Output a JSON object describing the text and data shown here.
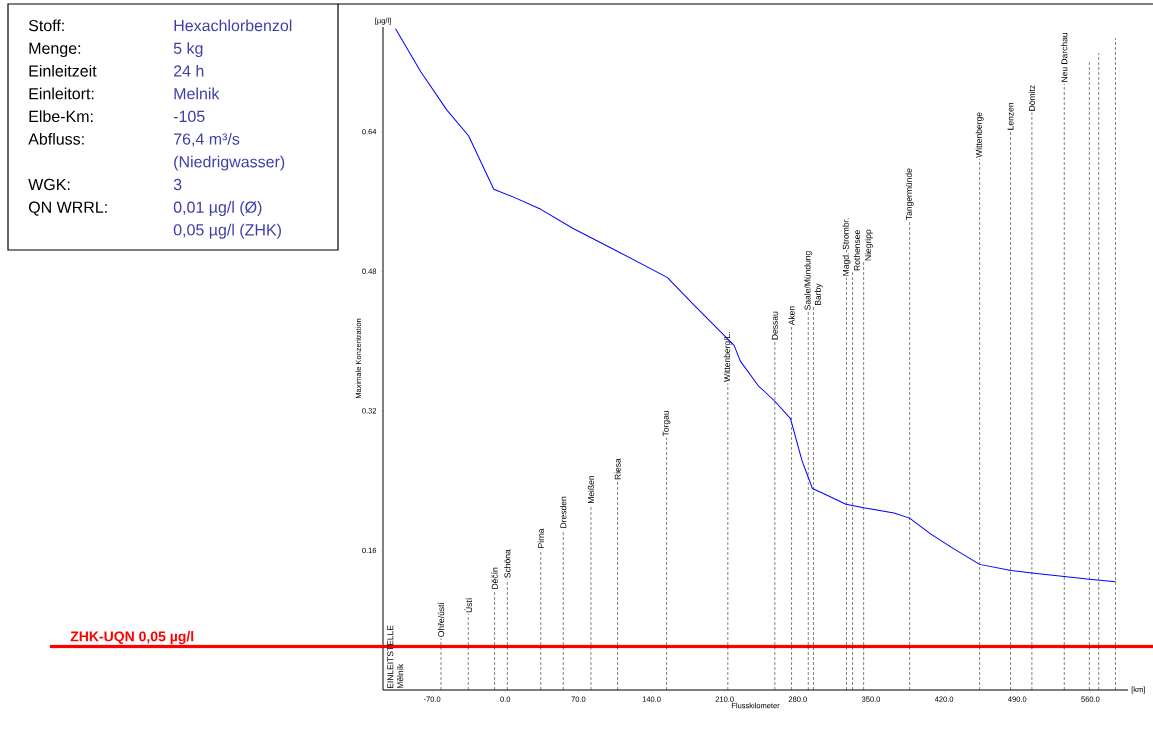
{
  "chart_data": [
    {
      "type": "other",
      "annotations": [
        "Stoff:",
        "Hexachlorbenzol",
        "Menge:",
        "5 kg",
        "Einleitzeit",
        "24 h",
        "Einleitort:",
        "Melnik",
        "Elbe-Km:",
        "-105",
        "Abfluss:",
        "76,4  m³/s (Niedrigwasser)",
        "WGK:",
        "3",
        "QN WRRL:",
        "0,01 µg/l (Ø) 0,05 µg/l (ZHK)"
      ]
    },
    {
      "type": "line",
      "xlabel": "Flusskilometer",
      "ylabel": "Maximale Konzentration",
      "annotations": [
        "[µg/l]",
        "[km]",
        "EINLEITSTELLE Mělník"
      ],
      "x": [
        -105,
        -81,
        -56,
        -35,
        -11,
        8,
        34,
        65,
        104,
        155,
        180,
        219,
        225,
        242,
        258,
        273,
        284,
        294,
        305,
        326,
        343,
        372,
        387,
        407,
        429,
        454,
        484,
        504,
        535,
        559,
        584
      ],
      "series": [
        {
          "color": "#0000ff",
          "values": [
            0.758,
            0.709,
            0.665,
            0.635,
            0.574,
            0.565,
            0.551,
            0.529,
            0.505,
            0.473,
            0.442,
            0.395,
            0.377,
            0.349,
            0.331,
            0.311,
            0.263,
            0.231,
            0.225,
            0.213,
            0.209,
            0.203,
            0.197,
            0.179,
            0.162,
            0.144,
            0.137,
            0.134,
            0.13,
            0.127,
            0.124
          ]
        }
      ],
      "xlim": [
        -117,
        596
      ],
      "ylim": [
        0,
        0.76
      ],
      "xticks": [
        {
          "value": -70,
          "label": "-70.0"
        },
        {
          "value": 0,
          "label": "0.0"
        },
        {
          "value": 70,
          "label": "70.0"
        },
        {
          "value": 140,
          "label": "140.0"
        },
        {
          "value": 210,
          "label": "210.0"
        },
        {
          "value": 280,
          "label": "280.0"
        },
        {
          "value": 350,
          "label": "350.0"
        },
        {
          "value": 420,
          "label": "420.0"
        },
        {
          "value": 490,
          "label": "490.0"
        },
        {
          "value": 560,
          "label": "560.0"
        }
      ],
      "yticks": [
        0.16,
        0.32,
        0.48,
        0.64
      ],
      "ref_lines": [
        {
          "axis": "y",
          "value": 0.05,
          "label": "ZHK-UQN 0,05 µg/l",
          "color": "#ff0000",
          "line_style": "solid"
        },
        {
          "axis": "x",
          "value": -61.5,
          "label": "Ohře/ústí",
          "color": "#000000",
          "line_style": "dashed"
        },
        {
          "axis": "x",
          "value": -35.4,
          "label": "Ústí",
          "color": "#000000",
          "line_style": "dashed"
        },
        {
          "axis": "x",
          "value": -10.2,
          "label": "Děčín",
          "color": "#000000",
          "line_style": "dashed"
        },
        {
          "axis": "x",
          "value": 2,
          "label": "Schöna",
          "color": "#000000",
          "line_style": "dashed"
        },
        {
          "axis": "x",
          "value": 34,
          "label": "Pirna",
          "color": "#000000",
          "line_style": "dashed"
        },
        {
          "axis": "x",
          "value": 55.5,
          "label": "Dresden",
          "color": "#000000",
          "line_style": "dashed"
        },
        {
          "axis": "x",
          "value": 82,
          "label": "Meißen",
          "color": "#000000",
          "line_style": "dashed"
        },
        {
          "axis": "x",
          "value": 107.5,
          "label": "Riesa",
          "color": "#000000",
          "line_style": "dashed"
        },
        {
          "axis": "x",
          "value": 154.4,
          "label": "Torgau",
          "color": "#000000",
          "line_style": "dashed"
        },
        {
          "axis": "x",
          "value": 213,
          "label": "Wittenberg/L.",
          "color": "#000000",
          "line_style": "dashed"
        },
        {
          "axis": "x",
          "value": 258,
          "label": "Dessau",
          "color": "#000000",
          "line_style": "dashed"
        },
        {
          "axis": "x",
          "value": 274,
          "label": "Aken",
          "color": "#000000",
          "line_style": "dashed"
        },
        {
          "axis": "x",
          "value": 290,
          "label": "Saale/Mündung",
          "color": "#000000",
          "line_style": "dashed"
        },
        {
          "axis": "x",
          "value": 295,
          "label": "Barby",
          "color": "#000000",
          "line_style": "dashed"
        },
        {
          "axis": "x",
          "value": 326.6,
          "label": "Magd.-Strombr.",
          "color": "#000000",
          "line_style": "dashed"
        },
        {
          "axis": "x",
          "value": 332.4,
          "label": "Rothensee",
          "color": "#000000",
          "line_style": "dashed"
        },
        {
          "axis": "x",
          "value": 343,
          "label": "Niegripp",
          "color": "#000000",
          "line_style": "dashed"
        },
        {
          "axis": "x",
          "value": 387,
          "label": "Tangermünde",
          "color": "#000000",
          "line_style": "dashed"
        },
        {
          "axis": "x",
          "value": 454,
          "label": "Wittenberge",
          "color": "#000000",
          "line_style": "dashed"
        },
        {
          "axis": "x",
          "value": 483.6,
          "label": "Lenzen",
          "color": "#000000",
          "line_style": "dashed"
        },
        {
          "axis": "x",
          "value": 504,
          "label": "Dömitz",
          "color": "#000000",
          "line_style": "dashed"
        },
        {
          "axis": "x",
          "value": 535,
          "label": "Neu Darchau",
          "color": "#000000",
          "line_style": "dashed"
        },
        {
          "axis": "x",
          "value": 559,
          "color": "#000000",
          "line_style": "dashed"
        },
        {
          "axis": "x",
          "value": 568,
          "color": "#000000",
          "line_style": "dashed"
        },
        {
          "axis": "x",
          "value": 584,
          "color": "#000000",
          "line_style": "dashed"
        }
      ]
    }
  ]
}
